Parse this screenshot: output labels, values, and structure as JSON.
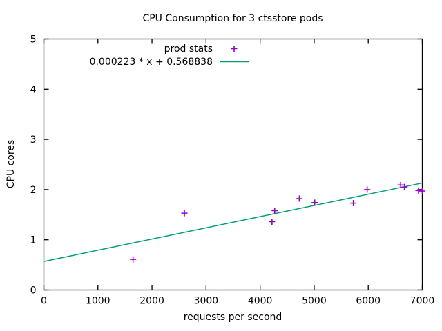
{
  "title": "CPU Consumption for 3 ctsstore pods",
  "colors": {
    "background": "#ffffff",
    "foreground": "#000000",
    "points": "#9400d3",
    "fit_line": "#009e73"
  },
  "chart_data": {
    "type": "scatter",
    "title": "CPU Consumption for 3 ctsstore pods",
    "xlabel": "requests per second",
    "ylabel": "CPU cores",
    "xlim": [
      0,
      7000
    ],
    "ylim": [
      0,
      5
    ],
    "x_ticks": [
      0,
      1000,
      2000,
      3000,
      4000,
      5000,
      6000,
      7000
    ],
    "y_ticks": [
      0,
      1,
      2,
      3,
      4,
      5
    ],
    "grid": false,
    "legend_position": "inside top center",
    "series": [
      {
        "name": "prod stats",
        "kind": "scatter",
        "marker": "plus",
        "color": "#9400d3",
        "points": [
          [
            1650,
            0.61
          ],
          [
            2600,
            1.53
          ],
          [
            4220,
            1.36
          ],
          [
            4270,
            1.58
          ],
          [
            4725,
            1.82
          ],
          [
            5010,
            1.74
          ],
          [
            5725,
            1.73
          ],
          [
            5980,
            2.0
          ],
          [
            6600,
            2.09
          ],
          [
            6670,
            2.05
          ],
          [
            6930,
            1.98
          ],
          [
            7000,
            1.97
          ]
        ]
      },
      {
        "name": "0.000223 * x + 0.568838",
        "kind": "line",
        "color": "#009e73",
        "slope": 0.000223,
        "intercept": 0.568838
      }
    ]
  }
}
